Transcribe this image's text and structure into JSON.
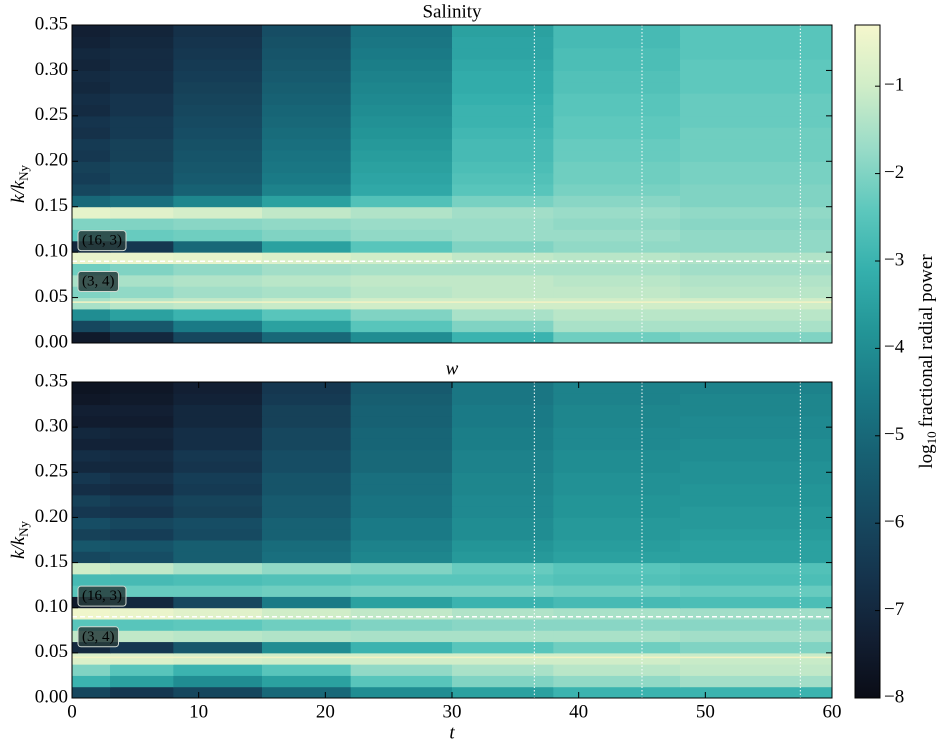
{
  "chart_data": [
    {
      "type": "heatmap",
      "title": "Salinity",
      "ylabel": "k/k",
      "ylabel_sub": "Ny",
      "x_edges": [
        0,
        3,
        8,
        15,
        22,
        30,
        38,
        48,
        60
      ],
      "y_edges": [
        0,
        0.0125,
        0.025,
        0.0375,
        0.05,
        0.0625,
        0.075,
        0.0875,
        0.1,
        0.1125,
        0.125,
        0.1375,
        0.15,
        0.1625,
        0.175,
        0.1875,
        0.2,
        0.2125,
        0.225,
        0.2375,
        0.25,
        0.2625,
        0.275,
        0.2875,
        0.3,
        0.3125,
        0.325,
        0.3375,
        0.35
      ],
      "z": [
        [
          -7.5,
          -7,
          -6,
          -5,
          -4,
          -3,
          -2.2,
          -2
        ],
        [
          -6,
          -5.5,
          -4.5,
          -3.5,
          -2.5,
          -2,
          -1.5,
          -1.5
        ],
        [
          -4,
          -3.5,
          -3,
          -2.5,
          -2,
          -1.5,
          -1.3,
          -1.3
        ],
        [
          -1.5,
          -1.3,
          -1.2,
          -1.1,
          -1,
          -1,
          -1,
          -1
        ],
        [
          -2,
          -1.8,
          -1.6,
          -1.5,
          -1.3,
          -1.2,
          -1.2,
          -1.3
        ],
        [
          -1.5,
          -1.5,
          -1.4,
          -1.3,
          -1.2,
          -1.2,
          -1.3,
          -1.4
        ],
        [
          -2.2,
          -2,
          -1.8,
          -1.6,
          -1.5,
          -1.5,
          -1.5,
          -1.6
        ],
        [
          -0.5,
          -0.5,
          -0.6,
          -0.8,
          -1,
          -1.2,
          -1.3,
          -1.4
        ],
        [
          -7,
          -6.5,
          -5,
          -3.5,
          -2.5,
          -2,
          -1.8,
          -1.8
        ],
        [
          -2.5,
          -2.3,
          -2.2,
          -2,
          -1.8,
          -1.7,
          -1.7,
          -1.8
        ],
        [
          -2,
          -2,
          -1.9,
          -1.8,
          -1.7,
          -1.7,
          -1.8,
          -1.9
        ],
        [
          -0.6,
          -0.7,
          -0.9,
          -1.2,
          -1.4,
          -1.6,
          -1.7,
          -1.8
        ],
        [
          -5,
          -4.8,
          -4.2,
          -3.5,
          -2.6,
          -2.1,
          -1.9,
          -2
        ],
        [
          -6,
          -5.8,
          -5.2,
          -4.3,
          -3.3,
          -2.5,
          -2.1,
          -2
        ],
        [
          -6.3,
          -6,
          -5.4,
          -4.5,
          -3.4,
          -2.6,
          -2.2,
          -2.1
        ],
        [
          -6.2,
          -6,
          -5.5,
          -4.6,
          -3.5,
          -2.7,
          -2.2,
          -2.1
        ],
        [
          -6.5,
          -6.2,
          -5.6,
          -4.7,
          -3.6,
          -2.8,
          -2.3,
          -2.2
        ],
        [
          -6.4,
          -6.2,
          -5.7,
          -4.8,
          -3.7,
          -2.8,
          -2.3,
          -2.2
        ],
        [
          -6.7,
          -6.4,
          -5.8,
          -4.9,
          -3.8,
          -2.9,
          -2.4,
          -2.2
        ],
        [
          -6.6,
          -6.4,
          -5.9,
          -5,
          -3.9,
          -3,
          -2.4,
          -2.3
        ],
        [
          -6.9,
          -6.6,
          -6,
          -5.1,
          -4,
          -3,
          -2.5,
          -2.3
        ],
        [
          -6.8,
          -6.6,
          -6.1,
          -5.2,
          -4.1,
          -3.1,
          -2.5,
          -2.3
        ],
        [
          -7,
          -6.8,
          -6.2,
          -5.3,
          -4.2,
          -3.2,
          -2.6,
          -2.4
        ],
        [
          -6.9,
          -6.8,
          -6.3,
          -5.4,
          -4.3,
          -3.2,
          -2.6,
          -2.4
        ],
        [
          -7.1,
          -6.9,
          -6.4,
          -5.5,
          -4.4,
          -3.3,
          -2.7,
          -2.4
        ],
        [
          -7,
          -6.9,
          -6.5,
          -5.6,
          -4.5,
          -3.4,
          -2.7,
          -2.5
        ],
        [
          -7.2,
          -7,
          -6.6,
          -5.7,
          -4.6,
          -3.4,
          -2.8,
          -2.5
        ],
        [
          -7.3,
          -7.1,
          -6.7,
          -5.8,
          -4.7,
          -3.5,
          -2.8,
          -2.5
        ]
      ],
      "xlim": [
        0,
        60
      ],
      "ylim": [
        0,
        0.35
      ],
      "yticks": [
        {
          "value": 0,
          "label": "0.00"
        },
        {
          "value": 0.05,
          "label": "0.05"
        },
        {
          "value": 0.1,
          "label": "0.10"
        },
        {
          "value": 0.15,
          "label": "0.15"
        },
        {
          "value": 0.2,
          "label": "0.20"
        },
        {
          "value": 0.25,
          "label": "0.25"
        },
        {
          "value": 0.3,
          "label": "0.30"
        },
        {
          "value": 0.35,
          "label": "0.35"
        }
      ],
      "vlines": [
        36.5,
        45,
        57.5
      ],
      "hlines": [
        {
          "value": 0.09,
          "label": "(16, 3)",
          "color": "#ffffff",
          "dashed": true
        },
        {
          "value": 0.045,
          "label": "(3, 4)",
          "color": "#f3f3c4",
          "dashed": false
        }
      ]
    },
    {
      "type": "heatmap",
      "title": "w",
      "ylabel": "k/k",
      "ylabel_sub": "Ny",
      "xlabel": "t",
      "x_edges": [
        0,
        3,
        8,
        15,
        22,
        30,
        38,
        48,
        60
      ],
      "y_edges": [
        0,
        0.0125,
        0.025,
        0.0375,
        0.05,
        0.0625,
        0.075,
        0.0875,
        0.1,
        0.1125,
        0.125,
        0.1375,
        0.15,
        0.1625,
        0.175,
        0.1875,
        0.2,
        0.2125,
        0.225,
        0.2375,
        0.25,
        0.2625,
        0.275,
        0.2875,
        0.3,
        0.3125,
        0.325,
        0.3375,
        0.35
      ],
      "z": [
        [
          -6,
          -6.5,
          -6,
          -5,
          -4,
          -3.5,
          -3,
          -3
        ],
        [
          -3,
          -3.5,
          -4,
          -3.5,
          -2.5,
          -2,
          -1.8,
          -1.6
        ],
        [
          -2,
          -2.5,
          -3,
          -2.5,
          -1.8,
          -1.5,
          -1.3,
          -1.2
        ],
        [
          -0.8,
          -0.8,
          -0.9,
          -1,
          -1,
          -1,
          -1,
          -1.1
        ],
        [
          -7,
          -6.5,
          -5.5,
          -4,
          -3,
          -2.5,
          -2.2,
          -2
        ],
        [
          -1.2,
          -1.2,
          -1.3,
          -1.4,
          -1.5,
          -1.5,
          -1.5,
          -1.6
        ],
        [
          -2.5,
          -2.5,
          -2.4,
          -2.2,
          -2,
          -1.9,
          -1.9,
          -1.9
        ],
        [
          -0.4,
          -0.5,
          -0.7,
          -1,
          -1.2,
          -1.4,
          -1.5,
          -1.6
        ],
        [
          -7.5,
          -7,
          -6,
          -4.5,
          -3.5,
          -3,
          -2.8,
          -2.7
        ],
        [
          -2.5,
          -2.3,
          -2.3,
          -2.2,
          -2.1,
          -2.1,
          -2.2,
          -2.3
        ],
        [
          -2.8,
          -2.8,
          -2.7,
          -2.6,
          -2.5,
          -2.5,
          -2.6,
          -2.7
        ],
        [
          -1,
          -1.2,
          -1.5,
          -1.8,
          -2,
          -2.3,
          -2.5,
          -2.6
        ],
        [
          -6,
          -5.8,
          -5.3,
          -4.8,
          -4.2,
          -3.7,
          -3.5,
          -3.5
        ],
        [
          -5.5,
          -5.6,
          -5.3,
          -4.9,
          -4.3,
          -3.8,
          -3.6,
          -3.5
        ],
        [
          -6.2,
          -6.3,
          -5.9,
          -5.2,
          -4.5,
          -4,
          -3.7,
          -3.6
        ],
        [
          -5.8,
          -6,
          -5.8,
          -5.2,
          -4.5,
          -4,
          -3.7,
          -3.7
        ],
        [
          -6.5,
          -6.6,
          -6.2,
          -5.4,
          -4.7,
          -4.1,
          -3.8,
          -3.7
        ],
        [
          -6.2,
          -6.4,
          -6.1,
          -5.4,
          -4.7,
          -4.1,
          -3.8,
          -3.8
        ],
        [
          -6.8,
          -6.9,
          -6.4,
          -5.6,
          -4.8,
          -4.2,
          -3.9,
          -3.8
        ],
        [
          -6.5,
          -6.7,
          -6.3,
          -5.6,
          -4.8,
          -4.2,
          -3.9,
          -3.9
        ],
        [
          -7,
          -7,
          -6.6,
          -5.8,
          -5,
          -4.3,
          -4,
          -3.9
        ],
        [
          -6.8,
          -6.9,
          -6.5,
          -5.8,
          -5,
          -4.3,
          -4,
          -4
        ],
        [
          -7.2,
          -7.2,
          -6.8,
          -6,
          -5.1,
          -4.4,
          -4.1,
          -4
        ],
        [
          -7,
          -7.1,
          -6.8,
          -6,
          -5.1,
          -4.4,
          -4.1,
          -4.1
        ],
        [
          -7.4,
          -7.4,
          -7,
          -6.2,
          -5.2,
          -4.5,
          -4.2,
          -4.1
        ],
        [
          -7.3,
          -7.3,
          -7,
          -6.2,
          -5.2,
          -4.5,
          -4.2,
          -4.2
        ],
        [
          -7.6,
          -7.5,
          -7.2,
          -6.4,
          -5.3,
          -4.6,
          -4.3,
          -4.2
        ],
        [
          -7.7,
          -7.6,
          -7.3,
          -6.5,
          -5.4,
          -4.6,
          -4.3,
          -4.3
        ]
      ],
      "xlim": [
        0,
        60
      ],
      "ylim": [
        0,
        0.35
      ],
      "xticks": [
        0,
        10,
        20,
        30,
        40,
        50,
        60
      ],
      "yticks": [
        {
          "value": 0,
          "label": "0.00"
        },
        {
          "value": 0.05,
          "label": "0.05"
        },
        {
          "value": 0.1,
          "label": "0.10"
        },
        {
          "value": 0.15,
          "label": "0.15"
        },
        {
          "value": 0.2,
          "label": "0.20"
        },
        {
          "value": 0.25,
          "label": "0.25"
        },
        {
          "value": 0.3,
          "label": "0.30"
        },
        {
          "value": 0.35,
          "label": "0.35"
        }
      ],
      "vlines": [
        36.5,
        45,
        57.5
      ],
      "hlines": [
        {
          "value": 0.09,
          "label": "(16, 3)",
          "color": "#ffffff",
          "dashed": true
        },
        {
          "value": 0.045,
          "label": "(3, 4)",
          "color": "#f3f3c4",
          "dashed": false
        }
      ]
    },
    {
      "type": "colorbar",
      "label_prefix": "log",
      "label_sub": "10",
      "label": "fractional radial power",
      "lim": [
        -8,
        -0.3
      ],
      "ticks": [
        {
          "value": -8,
          "label": "−8"
        },
        {
          "value": -7,
          "label": "−7"
        },
        {
          "value": -6,
          "label": "−6"
        },
        {
          "value": -5,
          "label": "−5"
        },
        {
          "value": -4,
          "label": "−4"
        },
        {
          "value": -3,
          "label": "−3"
        },
        {
          "value": -2,
          "label": "−2"
        },
        {
          "value": -1,
          "label": "−1"
        }
      ],
      "colormap": [
        "#0a0c16",
        "#121f33",
        "#15344d",
        "#164a61",
        "#176173",
        "#1a7a86",
        "#239597",
        "#35b0ad",
        "#5ec8bd",
        "#9adcc8",
        "#d0edc8",
        "#f5f7cc"
      ]
    }
  ]
}
